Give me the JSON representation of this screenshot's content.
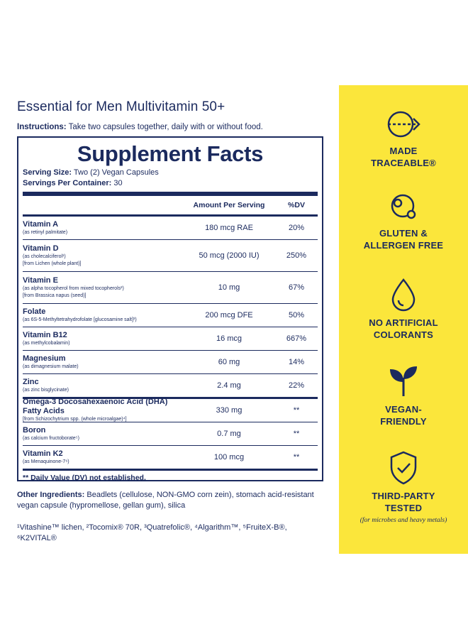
{
  "product_title": "Essential for Men Multivitamin 50+",
  "instructions": {
    "label": "Instructions:",
    "text": " Take two capsules together, daily with or without food."
  },
  "facts": {
    "title": "Supplement Facts",
    "serving_size_label": "Serving Size:",
    "serving_size": " Two (2) Vegan Capsules",
    "servings_label": "Servings Per Container:",
    "servings": " 30",
    "col_amount": "Amount Per Serving",
    "col_dv": "%DV",
    "rows": [
      {
        "name": "Vitamin A",
        "sub": [
          "(as retinyl palmitate)"
        ],
        "amount": "180 mcg RAE",
        "dv": "20%"
      },
      {
        "name": "Vitamin D",
        "sub": [
          "(as cholecalciferol¹)",
          "[from Lichen (whole plant)]"
        ],
        "amount": "50 mcg (2000 IU)",
        "dv": "250%"
      },
      {
        "name": "Vitamin E",
        "sub": [
          "(as alpha tocopherol from mixed tocopherols²)",
          "[from Brassica napus (seed)]"
        ],
        "amount": "10 mg",
        "dv": "67%"
      },
      {
        "name": "Folate",
        "sub": [
          "(as 6S-5-Methyltetrahydrofolate [glucosamine salt]³)"
        ],
        "amount": "200 mcg DFE",
        "dv": "50%"
      },
      {
        "name": "Vitamin B12",
        "sub": [
          "(as methylcobalamin)"
        ],
        "amount": "16 mcg",
        "dv": "667%"
      },
      {
        "name": "Magnesium",
        "sub": [
          "(as dimagnesium malate)"
        ],
        "amount": "60 mg",
        "dv": "14%"
      },
      {
        "name": "Zinc",
        "sub": [
          "(as zinc bisglycinate)"
        ],
        "amount": "2.4 mg",
        "dv": "22%"
      },
      {
        "name": "Omega-3 Docosahexaenoic Acid (DHA) Fatty Acids",
        "sub": [
          "[from Schizochytrium spp. (whole microalgae)⁴]"
        ],
        "amount": "330 mg",
        "dv": "**"
      },
      {
        "name": "Boron",
        "sub": [
          "(as calcium fructoborate⁵)"
        ],
        "amount": "0.7 mg",
        "dv": "**"
      },
      {
        "name": "Vitamin K2",
        "sub": [
          "(as Menaquinone-7⁶)"
        ],
        "amount": "100 mcg",
        "dv": "**"
      }
    ],
    "dv_note": "** Daily Value (DV) not established."
  },
  "other_ingredients": {
    "label": "Other Ingredients:",
    "text": " Beadlets (cellulose, NON-GMO corn zein), stomach acid-resistant vegan capsule (hypromellose, gellan gum), silica"
  },
  "footnotes": "¹Vitashine™ lichen, ²Tocomix® 70R, ³Quatrefolic®, ⁴Algarithm™, ⁵FruiteX-B®, ⁶K2VITAL®",
  "badges": [
    {
      "icon": "traceable-arrow-icon",
      "line1": "MADE",
      "line2": "TRACEABLE®"
    },
    {
      "icon": "gluten-free-icon",
      "line1": "GLUTEN &",
      "line2": "ALLERGEN FREE"
    },
    {
      "icon": "droplet-icon",
      "line1": "NO ARTIFICIAL",
      "line2": "COLORANTS"
    },
    {
      "icon": "sprout-icon",
      "line1": "VEGAN-",
      "line2": "FRIENDLY"
    },
    {
      "icon": "shield-check-icon",
      "line1": "THIRD-PARTY",
      "line2": "TESTED",
      "note": "(for microbes and heavy metals)"
    }
  ],
  "colors": {
    "navy": "#1b2a5e",
    "yellow": "#fbe63b"
  }
}
